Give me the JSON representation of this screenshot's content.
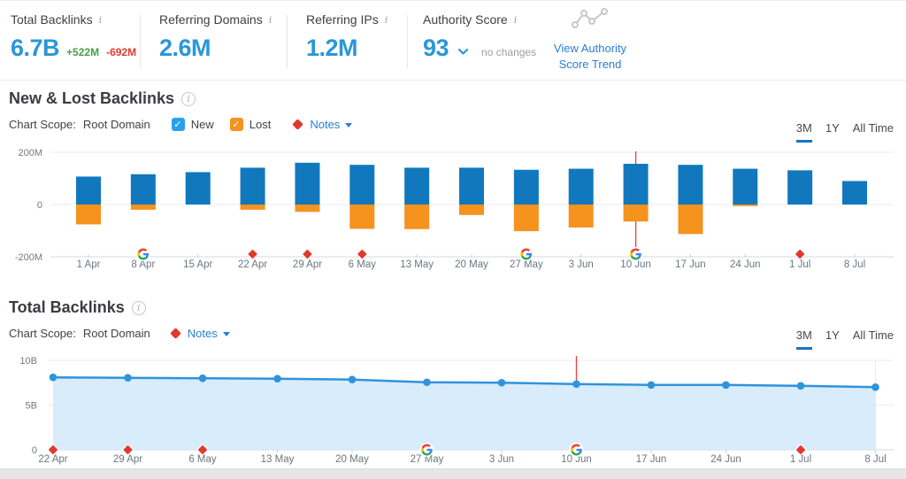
{
  "stats": {
    "items": [
      {
        "label": "Total Backlinks",
        "value": "6.7B",
        "delta_up": "+522M",
        "delta_down": "-692M"
      },
      {
        "label": "Referring Domains",
        "value": "2.6M"
      },
      {
        "label": "Referring IPs",
        "value": "1.2M"
      },
      {
        "label": "Authority Score",
        "value": "93",
        "change_note": "no changes"
      }
    ],
    "trend_link": {
      "line1": "View Authority",
      "line2": "Score Trend"
    }
  },
  "sections": [
    {
      "title": "New & Lost Backlinks",
      "scope_label": "Chart Scope:",
      "scope_value": "Root Domain",
      "legend": [
        {
          "label": "New",
          "color": "#2aa1ef",
          "checked": true
        },
        {
          "label": "Lost",
          "color": "#f6921e",
          "checked": true
        }
      ],
      "notes_label": "Notes",
      "tabs": [
        {
          "label": "3M",
          "active": true
        },
        {
          "label": "1Y",
          "active": false
        },
        {
          "label": "All Time",
          "active": false
        }
      ]
    },
    {
      "title": "Total Backlinks",
      "scope_label": "Chart Scope:",
      "scope_value": "Root Domain",
      "notes_label": "Notes",
      "tabs": [
        {
          "label": "3M",
          "active": true
        },
        {
          "label": "1Y",
          "active": false
        },
        {
          "label": "All Time",
          "active": false
        }
      ]
    }
  ],
  "colors": {
    "accent_blue": "#2b96d9",
    "positive_green": "#43a047",
    "negative_red": "#e0392e",
    "link_blue": "#2a7fd4",
    "tab_underline": "#1576c2",
    "note_marker_red": "#e0392e",
    "annotation_line_red": "#e8473c"
  },
  "chart_data": [
    {
      "type": "bar",
      "title": "New & Lost Backlinks",
      "unit": "M",
      "categories": [
        "1 Apr",
        "8 Apr",
        "15 Apr",
        "22 Apr",
        "29 Apr",
        "6 May",
        "13 May",
        "20 May",
        "27 May",
        "3 Jun",
        "10 Jun",
        "17 Jun",
        "24 Jun",
        "1 Jul",
        "8 Jul"
      ],
      "series": [
        {
          "name": "New",
          "color": "#1178be",
          "values": [
            107,
            116,
            124,
            141,
            160,
            152,
            141,
            141,
            133,
            137,
            156,
            152,
            137,
            131,
            90
          ]
        },
        {
          "name": "Lost",
          "color": "#f6921e",
          "values": [
            -76,
            -20,
            0,
            -20,
            -28,
            -93,
            -94,
            -40,
            -102,
            -88,
            -65,
            -113,
            -6,
            0,
            0
          ]
        }
      ],
      "ylim": [
        -200,
        200
      ],
      "yticks": [
        {
          "label": "200M",
          "value": 200
        },
        {
          "label": "0",
          "value": 0
        },
        {
          "label": "-200M",
          "value": -200
        }
      ],
      "grid": true,
      "annotations": {
        "google_update_markers": [
          "8 Apr",
          "27 May",
          "10 Jun"
        ],
        "note_markers": [
          "22 Apr",
          "29 Apr",
          "6 May",
          "1 Jul"
        ],
        "red_line_at": "10 Jun"
      }
    },
    {
      "type": "area",
      "title": "Total Backlinks",
      "unit": "B",
      "categories": [
        "22 Apr",
        "29 Apr",
        "6 May",
        "13 May",
        "20 May",
        "27 May",
        "3 Jun",
        "10 Jun",
        "17 Jun",
        "24 Jun",
        "1 Jul",
        "8 Jul"
      ],
      "values": [
        8.1,
        8.05,
        8.0,
        7.95,
        7.85,
        7.55,
        7.5,
        7.35,
        7.25,
        7.25,
        7.15,
        7.0
      ],
      "line_color": "#2f93dd",
      "fill_color": "#cfe7fa",
      "ylim": [
        0,
        10
      ],
      "yticks": [
        {
          "label": "10B",
          "value": 10
        },
        {
          "label": "5B",
          "value": 5
        },
        {
          "label": "0",
          "value": 0
        }
      ],
      "grid": true,
      "annotations": {
        "google_update_markers": [
          "27 May",
          "10 Jun"
        ],
        "note_markers": [
          "22 Apr",
          "29 Apr",
          "6 May",
          "1 Jul"
        ],
        "red_line_at": "10 Jun"
      }
    }
  ]
}
